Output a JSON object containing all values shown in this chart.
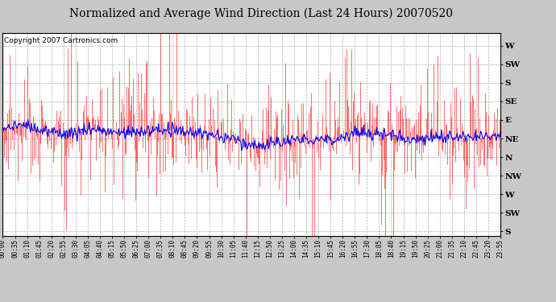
{
  "title": "Normalized and Average Wind Direction (Last 24 Hours) 20070520",
  "copyright": "Copyright 2007 Cartronics.com",
  "background_color": "#c8c8c8",
  "plot_bg_color": "#ffffff",
  "red_color": "#ff0000",
  "blue_color": "#0000ff",
  "ytick_labels": [
    "W",
    "SW",
    "S",
    "SE",
    "E",
    "NE",
    "N",
    "NW",
    "W",
    "SW",
    "S"
  ],
  "ytick_values": [
    360,
    315,
    270,
    225,
    180,
    135,
    90,
    45,
    0,
    -45,
    -90
  ],
  "ylim": [
    -100,
    390
  ],
  "num_points": 576,
  "time_labels": [
    "00:00",
    "00:35",
    "01:10",
    "01:45",
    "02:20",
    "02:55",
    "03:30",
    "04:05",
    "04:40",
    "05:15",
    "05:50",
    "06:25",
    "07:00",
    "07:35",
    "08:10",
    "08:45",
    "09:20",
    "09:55",
    "10:30",
    "11:05",
    "11:40",
    "12:15",
    "12:50",
    "13:25",
    "14:00",
    "14:35",
    "15:10",
    "15:45",
    "16:20",
    "16:55",
    "17:30",
    "18:05",
    "18:40",
    "19:15",
    "19:50",
    "20:25",
    "21:00",
    "21:35",
    "22:10",
    "22:45",
    "23:20",
    "23:55"
  ],
  "grid_color": "#999999",
  "title_fontsize": 10,
  "copyright_fontsize": 6.5
}
